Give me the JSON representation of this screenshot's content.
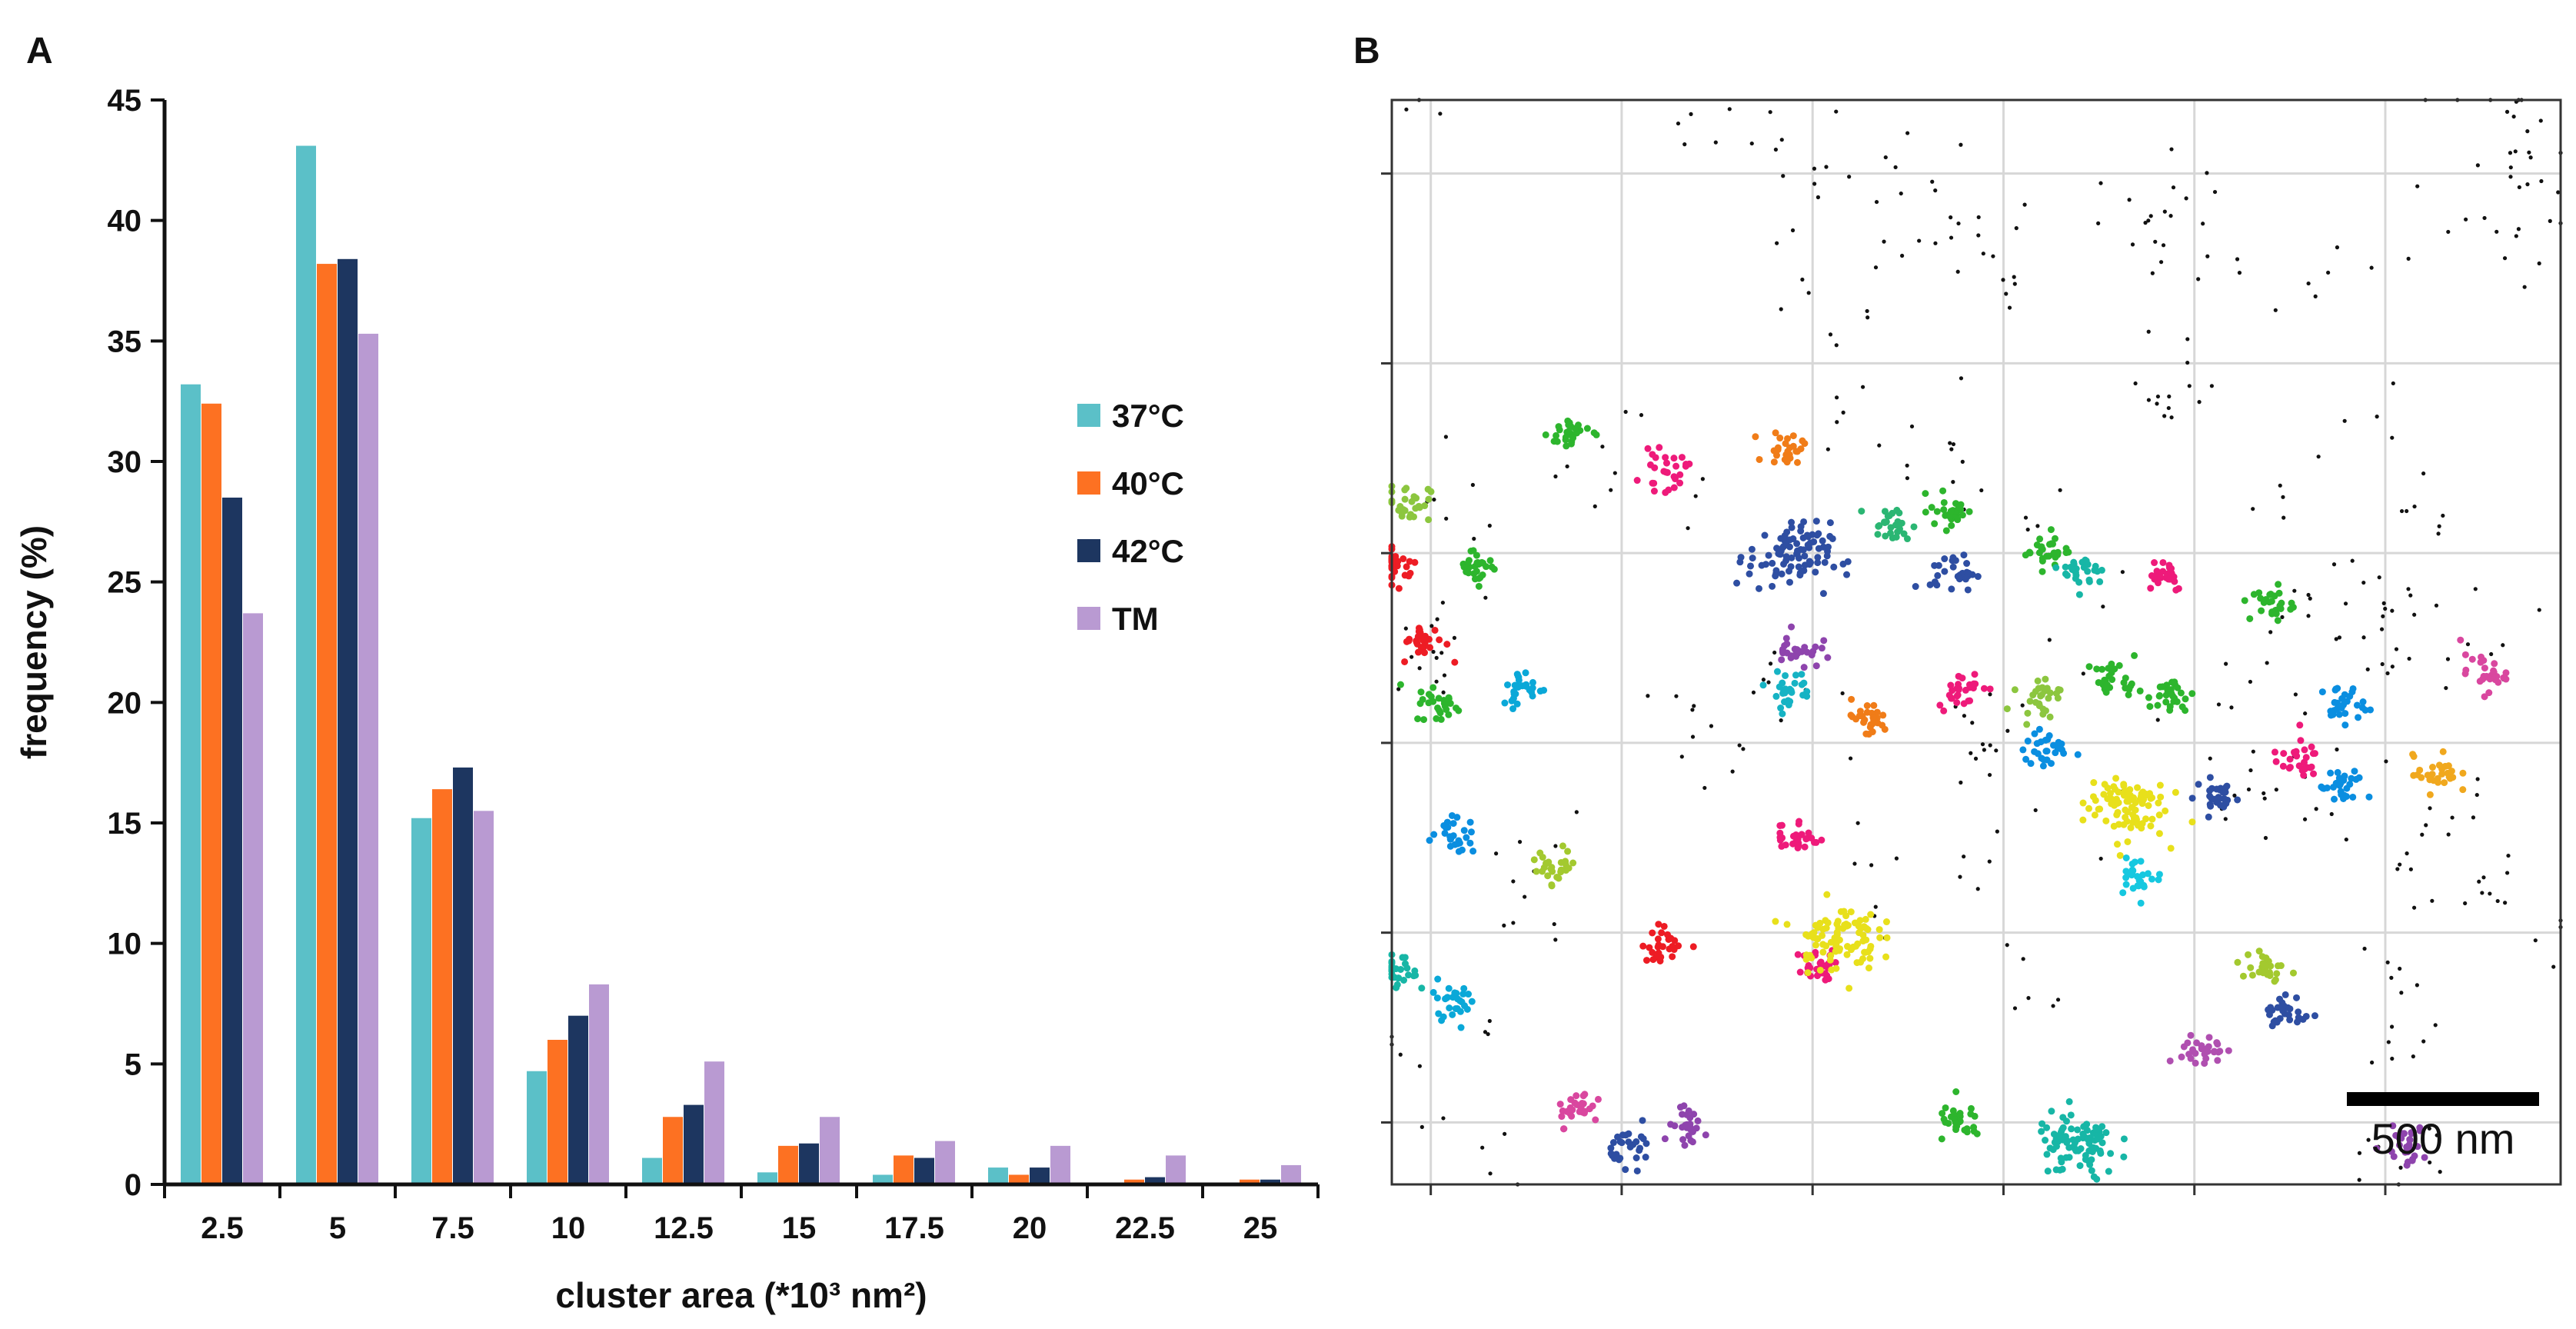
{
  "figure": {
    "panel_a_label": "A",
    "panel_b_label": "B"
  },
  "chart_data": [
    {
      "type": "bar",
      "panel": "A",
      "categories": [
        "2.5",
        "5",
        "7.5",
        "10",
        "12.5",
        "15",
        "17.5",
        "20",
        "22.5",
        "25"
      ],
      "series": [
        {
          "name": "37°C",
          "color": "#5bc0c8",
          "values": [
            33.2,
            43.1,
            15.2,
            4.7,
            1.1,
            0.5,
            0.4,
            0.7,
            0.05,
            0.05
          ]
        },
        {
          "name": "40°C",
          "color": "#fd7122",
          "values": [
            32.4,
            38.2,
            16.4,
            6.0,
            2.8,
            1.6,
            1.2,
            0.4,
            0.2,
            0.2
          ]
        },
        {
          "name": "42°C",
          "color": "#1d3660",
          "values": [
            28.5,
            38.4,
            17.3,
            7.0,
            3.3,
            1.7,
            1.1,
            0.7,
            0.3,
            0.2
          ]
        },
        {
          "name": "TM",
          "color": "#b99ad2",
          "values": [
            23.7,
            35.3,
            15.5,
            8.3,
            5.1,
            2.8,
            1.8,
            1.6,
            1.2,
            0.8
          ]
        }
      ],
      "yticks": [
        "0",
        "5",
        "10",
        "15",
        "20",
        "25",
        "30",
        "35",
        "40",
        "45"
      ],
      "ylim": [
        0,
        45
      ],
      "xlabel": "cluster area (*10³ nm²)",
      "ylabel": "frequency (%)",
      "legend_position": "right"
    },
    {
      "type": "scatter",
      "panel": "B",
      "title": "",
      "scale_bar_label": "500 nm",
      "grid": true,
      "background_color": "#111111",
      "clusters": [
        {
          "x": 0.23,
          "y": 0.97,
          "color": "#2db52d"
        },
        {
          "x": 0.35,
          "y": 0.92,
          "color": "#ee1a7a"
        },
        {
          "x": 0.51,
          "y": 0.95,
          "color": "#f07c18"
        },
        {
          "x": 0.02,
          "y": 0.88,
          "color": "#8cc63f"
        },
        {
          "x": 0.11,
          "y": 0.8,
          "color": "#2db52d"
        },
        {
          "x": 0.51,
          "y": 0.81,
          "color": "#2e4ea2"
        },
        {
          "x": 0.64,
          "y": 0.85,
          "color": "#2bb673"
        },
        {
          "x": 0.72,
          "y": 0.87,
          "color": "#2db52d"
        },
        {
          "x": 0.72,
          "y": 0.79,
          "color": "#2e4ea2"
        },
        {
          "x": 0.84,
          "y": 0.82,
          "color": "#2db52d"
        },
        {
          "x": 0.89,
          "y": 0.79,
          "color": "#17b6a6"
        },
        {
          "x": 0.99,
          "y": 0.79,
          "color": "#ee1a7a"
        },
        {
          "x": 0.005,
          "y": 0.8,
          "color": "#ed1c24"
        },
        {
          "x": 0.04,
          "y": 0.7,
          "color": "#ed1c24"
        },
        {
          "x": 0.06,
          "y": 0.62,
          "color": "#2db52d"
        },
        {
          "x": 0.17,
          "y": 0.64,
          "color": "#0aa8d8"
        },
        {
          "x": 0.52,
          "y": 0.69,
          "color": "#8e44ad"
        },
        {
          "x": 0.51,
          "y": 0.64,
          "color": "#16b3c4"
        },
        {
          "x": 0.61,
          "y": 0.6,
          "color": "#f07c18"
        },
        {
          "x": 0.73,
          "y": 0.64,
          "color": "#ee1a7a"
        },
        {
          "x": 0.83,
          "y": 0.63,
          "color": "#8cc63f"
        },
        {
          "x": 0.93,
          "y": 0.65,
          "color": "#2db52d"
        },
        {
          "x": 1.0,
          "y": 0.63,
          "color": "#2db52d"
        },
        {
          "x": 1.13,
          "y": 0.75,
          "color": "#2db52d"
        },
        {
          "x": 1.22,
          "y": 0.62,
          "color": "#0a8ee0"
        },
        {
          "x": 1.4,
          "y": 0.66,
          "color": "#d9479f"
        },
        {
          "x": 0.84,
          "y": 0.56,
          "color": "#0a8ee0"
        },
        {
          "x": 0.94,
          "y": 0.49,
          "color": "#e8e01b"
        },
        {
          "x": 1.06,
          "y": 0.5,
          "color": "#2e4ea2"
        },
        {
          "x": 1.16,
          "y": 0.55,
          "color": "#ee1a7a"
        },
        {
          "x": 1.22,
          "y": 0.51,
          "color": "#0a8ee0"
        },
        {
          "x": 1.34,
          "y": 0.53,
          "color": "#f0a81e"
        },
        {
          "x": 0.52,
          "y": 0.45,
          "color": "#ee1a7a"
        },
        {
          "x": 0.08,
          "y": 0.45,
          "color": "#0a8ee0"
        },
        {
          "x": 0.21,
          "y": 0.41,
          "color": "#a3c92f"
        },
        {
          "x": 0.96,
          "y": 0.4,
          "color": "#16c8e0"
        },
        {
          "x": 0.35,
          "y": 0.31,
          "color": "#ed1c24"
        },
        {
          "x": 0.55,
          "y": 0.28,
          "color": "#ee1a7a"
        },
        {
          "x": 0.57,
          "y": 0.32,
          "color": "#e8e01b"
        },
        {
          "x": 1.12,
          "y": 0.28,
          "color": "#a3c92f"
        },
        {
          "x": 1.15,
          "y": 0.22,
          "color": "#2e4ea2"
        },
        {
          "x": 0.08,
          "y": 0.24,
          "color": "#0aa8d8"
        },
        {
          "x": 0.005,
          "y": 0.27,
          "color": "#17b6a6"
        },
        {
          "x": 1.04,
          "y": 0.17,
          "color": "#b04fb0"
        },
        {
          "x": 0.24,
          "y": 0.1,
          "color": "#d9479f"
        },
        {
          "x": 0.31,
          "y": 0.05,
          "color": "#2e4ea2"
        },
        {
          "x": 0.38,
          "y": 0.07,
          "color": "#8e44ad"
        },
        {
          "x": 0.73,
          "y": 0.08,
          "color": "#2db52d"
        },
        {
          "x": 0.88,
          "y": 0.05,
          "color": "#17b6a6"
        },
        {
          "x": 1.3,
          "y": 0.05,
          "color": "#8e44ad"
        }
      ]
    }
  ]
}
